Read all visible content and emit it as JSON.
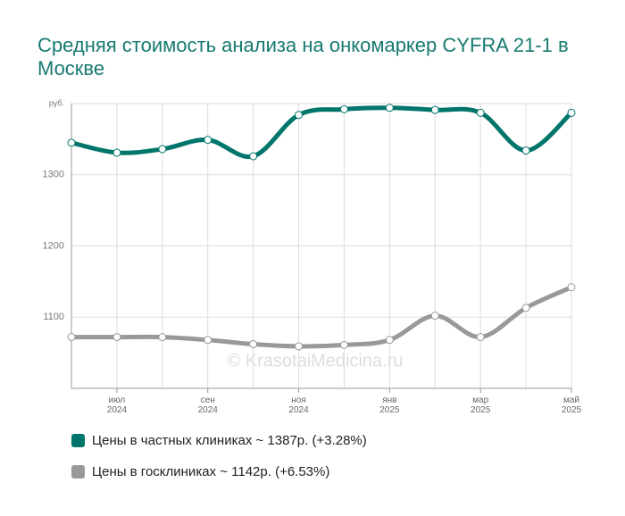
{
  "chart_data": {
    "type": "line",
    "title": "Средняя стоимость анализа на онкомаркер CYFRA 21-1 в Москве",
    "watermark": "© KrasotaiMedicina.ru",
    "categories": [
      null,
      "июл\n2024",
      null,
      "сен\n2024",
      null,
      "ноя\n2024",
      null,
      "янв\n2025",
      null,
      "мар\n2025",
      null,
      "май\n2025"
    ],
    "series": [
      {
        "name": "Цены в частных клиниках ~ 1387р. (+3.28%)",
        "color": "#00756b",
        "values": [
          1345,
          1331,
          1336,
          1349,
          1326,
          1384,
          1392,
          1394,
          1391,
          1387,
          1334,
          1387
        ]
      },
      {
        "name": "Цены в госклиниках ~ 1142р. (+6.53%)",
        "color": "#999999",
        "values": [
          1072,
          1072,
          1072,
          1068,
          1062,
          1059,
          1061,
          1068,
          1102,
          1072,
          1113,
          1142
        ]
      }
    ],
    "ylim": [
      1000,
      1400
    ],
    "yticks": [
      1100,
      1200,
      1300,
      {
        "value": 1400,
        "label": "руб."
      }
    ],
    "grid": true
  }
}
